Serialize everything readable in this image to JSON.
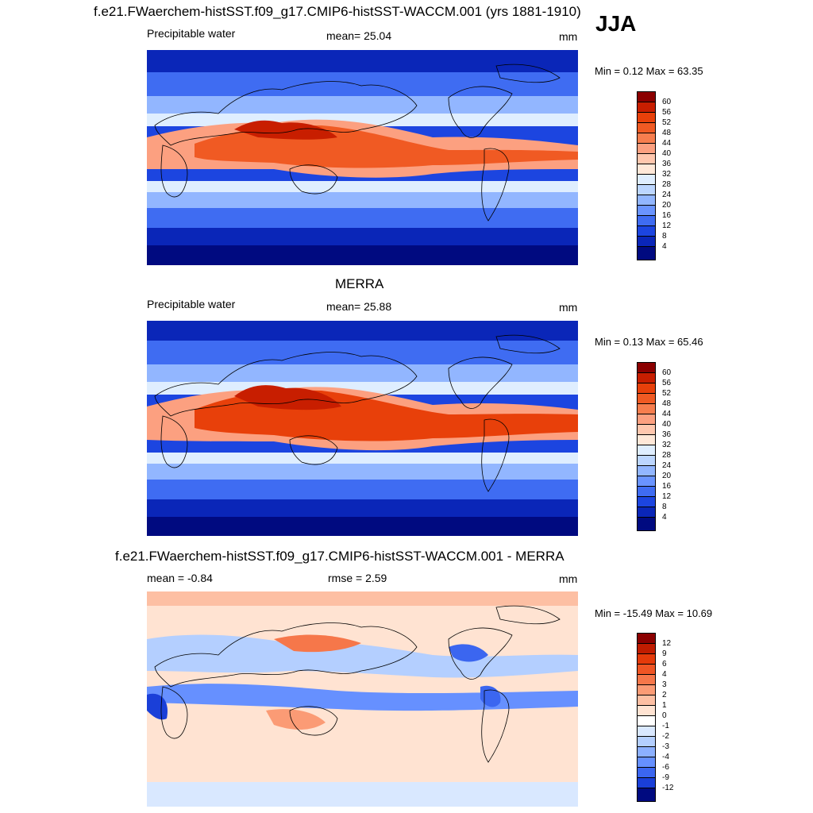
{
  "season": "JJA",
  "panels": [
    {
      "title": "f.e21.FWaerchem-histSST.f09_g17.CMIP6-histSST-WACCM.001 (yrs 1881-1910)",
      "left_label": "Precipitable water",
      "center_label": "mean=  25.04",
      "units": "mm",
      "minmax": "Min =   0.12 Max =  63.35",
      "levels": [
        "60",
        "56",
        "52",
        "48",
        "44",
        "40",
        "36",
        "32",
        "28",
        "24",
        "20",
        "16",
        "12",
        "8",
        "4"
      ]
    },
    {
      "title": "MERRA",
      "left_label": "Precipitable water",
      "center_label": "mean=  25.88",
      "units": "mm",
      "minmax": "Min =   0.13 Max =  65.46",
      "levels": [
        "60",
        "56",
        "52",
        "48",
        "44",
        "40",
        "36",
        "32",
        "28",
        "24",
        "20",
        "16",
        "12",
        "8",
        "4"
      ]
    },
    {
      "title": "f.e21.FWaerchem-histSST.f09_g17.CMIP6-histSST-WACCM.001 - MERRA",
      "left_label": "mean =  -0.84",
      "center_label": "rmse =   2.59",
      "units": "mm",
      "minmax": "Min = -15.49 Max =  10.69",
      "levels": [
        "12",
        "9",
        "6",
        "4",
        "3",
        "2",
        "1",
        "0",
        "-1",
        "-2",
        "-3",
        "-4",
        "-6",
        "-9",
        "-12"
      ]
    }
  ],
  "colors": {
    "abs_scale": [
      "#8b0000",
      "#c81e00",
      "#e8400a",
      "#f05a23",
      "#f77e4e",
      "#fca080",
      "#ffc7ae",
      "#ffe8d8",
      "#dfeeff",
      "#bcd6ff",
      "#92b6ff",
      "#6a94ff",
      "#3f6cf2",
      "#1c45e0",
      "#0a26b8",
      "#000a80"
    ],
    "diff_scale": [
      "#8b0000",
      "#c01c00",
      "#e43a0a",
      "#ef5524",
      "#f6774a",
      "#fb9b75",
      "#fdbfa3",
      "#ffe3d2",
      "#ffffff",
      "#d9e8ff",
      "#b4cfff",
      "#8cb0ff",
      "#6690ff",
      "#3b66f0",
      "#1a3fd8",
      "#000a80"
    ]
  }
}
